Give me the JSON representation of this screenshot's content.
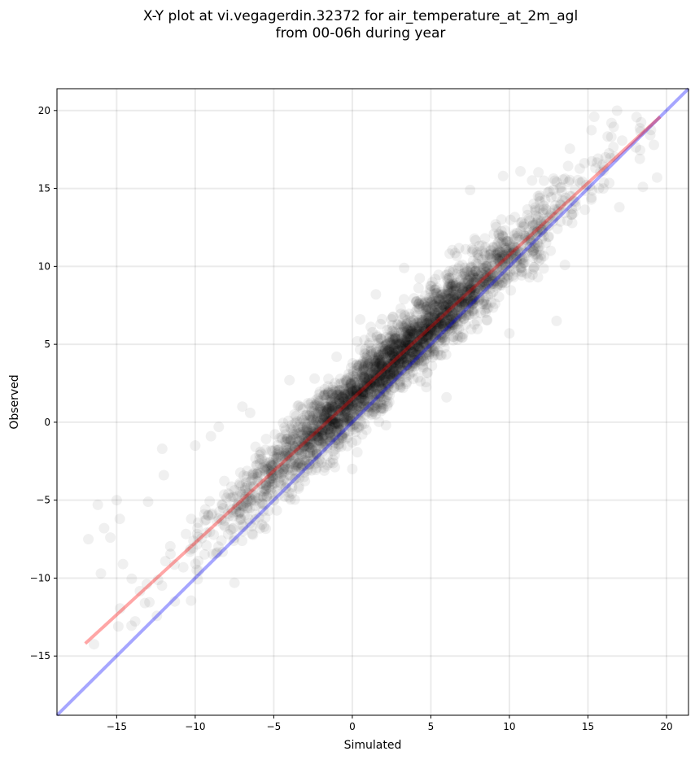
{
  "chart_data": {
    "type": "scatter",
    "title": [
      "X-Y plot at vi.vegagerdin.32372 for air_temperature_at_2m_agl",
      "from 00-06h during year"
    ],
    "xlabel": "Simulated",
    "ylabel": "Observed",
    "xlim": [
      -18.8,
      21.4
    ],
    "ylim": [
      -18.8,
      21.4
    ],
    "xticks": [
      -15,
      -10,
      -5,
      0,
      5,
      10,
      15,
      20
    ],
    "yticks": [
      -15,
      -10,
      -5,
      0,
      5,
      10,
      15,
      20
    ],
    "grid": true,
    "point_color": "#000000",
    "point_opacity": 0.06,
    "reference_line": {
      "x": [
        -18.8,
        21.4
      ],
      "y": [
        -18.8,
        21.4
      ],
      "color": "#0000ff"
    },
    "fit_line": {
      "x": [
        -17.0,
        19.6
      ],
      "y": [
        -14.2,
        19.6
      ],
      "color": "#ff0000"
    },
    "scatter_model": {
      "count": 3200,
      "seed": 32372,
      "x_mean": 2.5,
      "x_sd": 5.3,
      "x_min": -17.0,
      "x_max": 19.8,
      "slope": 0.924,
      "intercept": 1.5,
      "residual_sd": 1.15,
      "outliers": [
        [
          -16.2,
          -5.3
        ],
        [
          -15.8,
          -6.8
        ],
        [
          -15.4,
          -7.4
        ],
        [
          -15.0,
          -5.0
        ],
        [
          -14.8,
          -6.2
        ],
        [
          -16.8,
          -7.5
        ],
        [
          -16.0,
          -9.7
        ],
        [
          -14.6,
          -9.1
        ],
        [
          -13.0,
          -5.1
        ],
        [
          -12.1,
          -1.7
        ],
        [
          -12.0,
          -3.4
        ],
        [
          -10.0,
          -1.5
        ],
        [
          -9.0,
          -0.9
        ],
        [
          -8.5,
          -0.3
        ],
        [
          -7.0,
          1.0
        ],
        [
          -6.5,
          0.6
        ],
        [
          -4.0,
          2.7
        ],
        [
          -2.4,
          2.8
        ],
        [
          -1.0,
          4.2
        ],
        [
          0.5,
          6.6
        ],
        [
          1.5,
          8.2
        ],
        [
          3.3,
          9.9
        ],
        [
          7.5,
          14.9
        ],
        [
          9.6,
          15.8
        ],
        [
          10.7,
          16.1
        ],
        [
          15.4,
          19.6
        ],
        [
          16.5,
          19.2
        ],
        [
          19.2,
          17.8
        ],
        [
          19.4,
          15.7
        ],
        [
          18.5,
          15.1
        ],
        [
          13.0,
          6.5
        ],
        [
          10.0,
          5.7
        ],
        [
          6.0,
          1.6
        ],
        [
          0.0,
          -3.0
        ],
        [
          -7.5,
          -10.3
        ],
        [
          -11.3,
          -11.5
        ],
        [
          -13.2,
          -11.6
        ],
        [
          17.0,
          13.8
        ],
        [
          18.3,
          16.9
        ],
        [
          12.2,
          15.5
        ]
      ]
    }
  }
}
